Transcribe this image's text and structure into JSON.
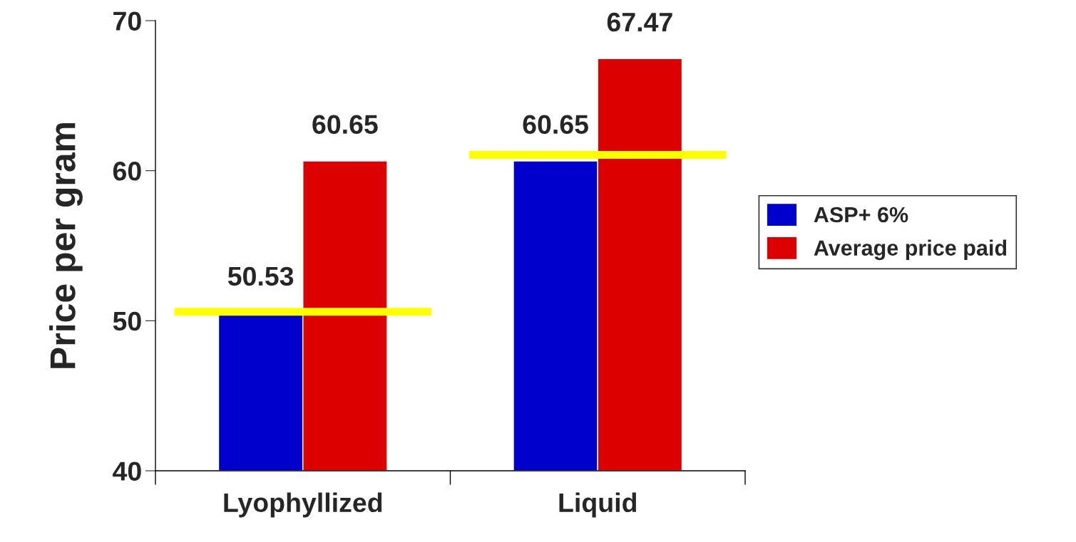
{
  "chart_data": {
    "type": "bar",
    "ylabel": "Price per gram",
    "categories": [
      "Lyophyllized",
      "Liquid"
    ],
    "series": [
      {
        "name": "ASP+ 6%",
        "color": "#0000cc",
        "values": [
          50.53,
          60.65
        ]
      },
      {
        "name": "Average price paid",
        "color": "#dd0000",
        "values": [
          60.65,
          67.47
        ]
      }
    ],
    "ref_lines": [
      {
        "axis": "y",
        "value": 50.6,
        "color": "#ffff00"
      },
      {
        "axis": "y",
        "value": 61.05,
        "color": "#ffff00"
      }
    ],
    "data_labels": true,
    "ylim": [
      40,
      70
    ],
    "yticks": [
      40,
      50,
      60,
      70
    ],
    "grid": false,
    "legend": "right"
  }
}
